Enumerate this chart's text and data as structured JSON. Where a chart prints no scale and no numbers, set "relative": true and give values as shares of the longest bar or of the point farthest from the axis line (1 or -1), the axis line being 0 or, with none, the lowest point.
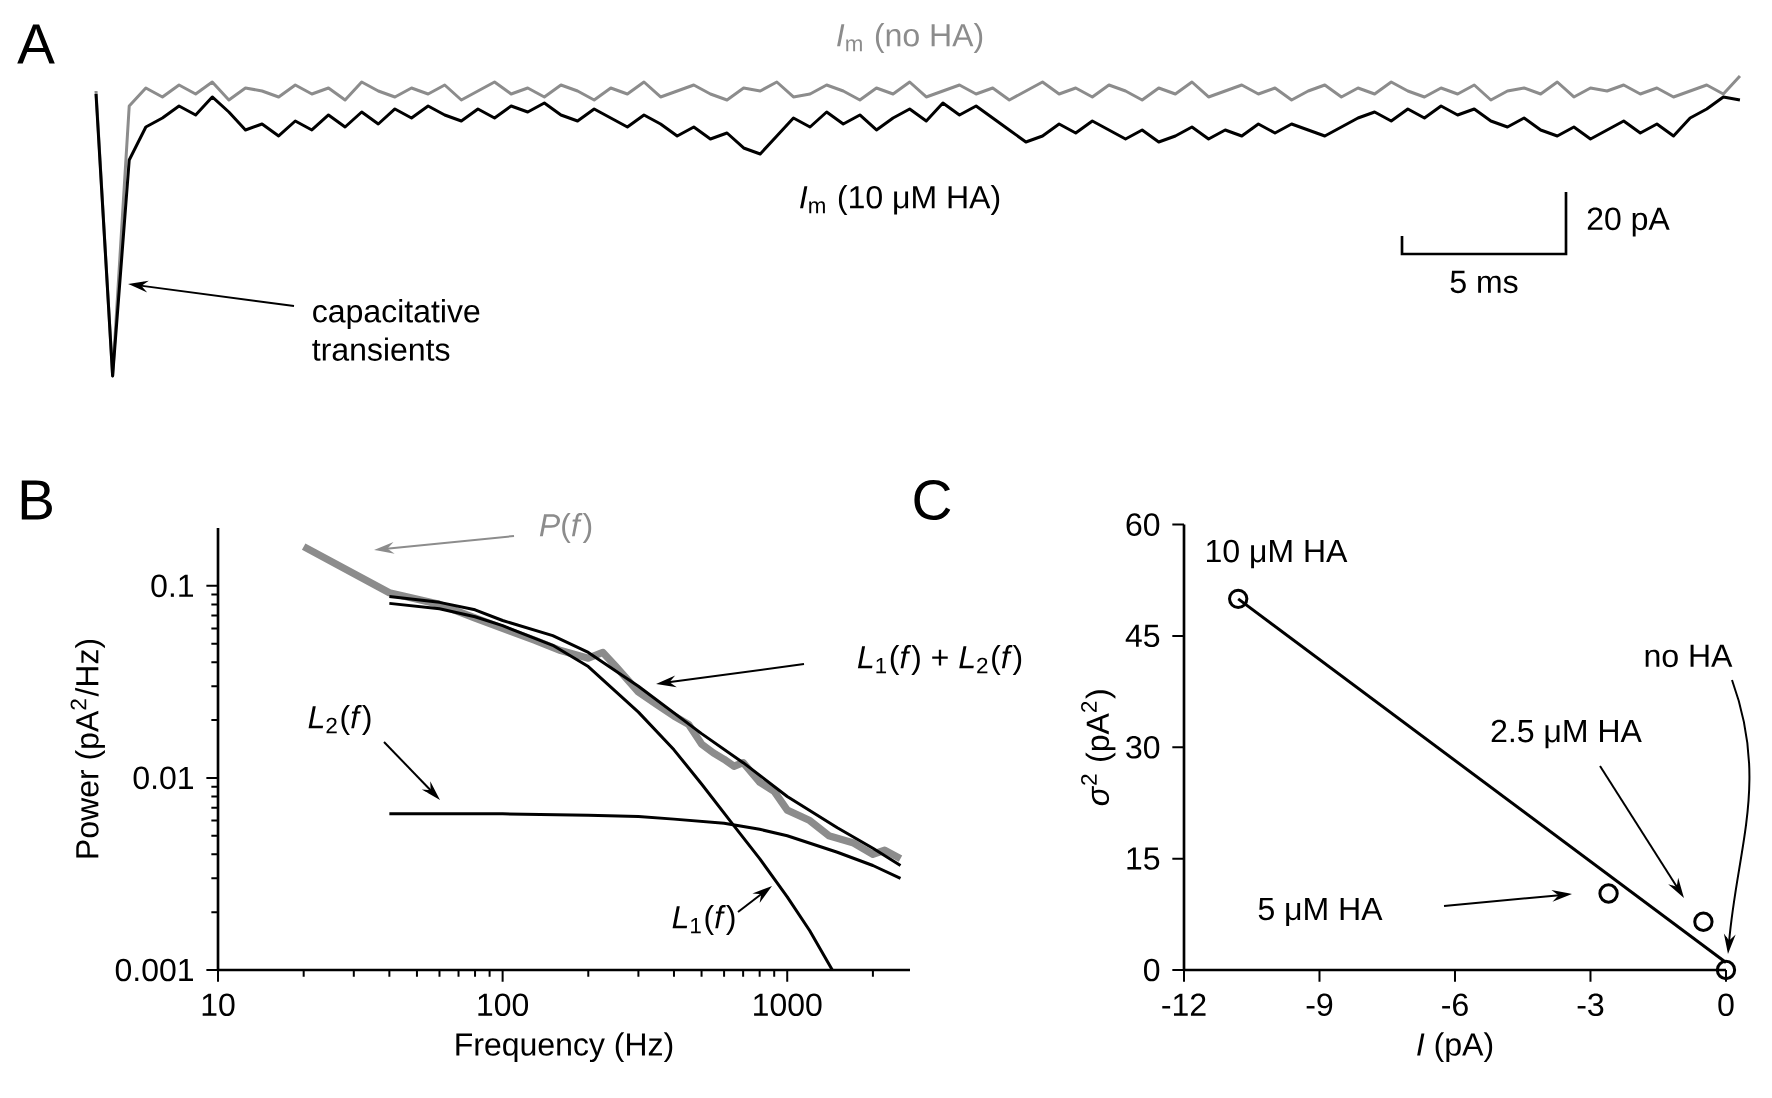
{
  "chart_data": [
    {
      "type": "line",
      "title": "A",
      "relative": true,
      "categories": [
        null,
        null,
        null,
        null,
        null,
        null,
        null,
        null,
        null,
        null,
        null,
        null,
        null,
        null,
        null,
        null,
        null,
        null,
        null,
        null,
        null,
        null,
        null,
        null,
        null,
        null,
        null,
        null,
        null,
        null,
        null,
        null,
        null,
        null,
        null,
        null,
        null,
        null,
        null,
        null,
        null,
        null,
        null,
        null,
        null,
        null,
        null,
        null,
        null,
        null,
        null,
        null,
        null,
        null,
        null,
        null,
        null,
        null,
        null,
        null,
        null,
        null,
        null,
        null,
        null,
        null,
        null,
        null,
        null,
        null,
        null,
        null,
        null,
        null,
        null,
        null,
        null,
        null,
        null,
        null,
        null,
        null,
        null,
        null,
        null,
        null,
        null,
        null,
        null,
        null,
        null,
        null,
        null,
        null,
        null,
        null,
        null,
        null,
        null,
        null
      ],
      "series": [
        {
          "name": "*I*$_{m}$ (no HA)",
          "color": "#8c8c8c",
          "values": [
            0.95,
            0.0,
            0.9,
            0.96,
            0.93,
            0.97,
            0.94,
            0.98,
            0.92,
            0.96,
            0.95,
            0.93,
            0.97,
            0.94,
            0.96,
            0.92,
            0.98,
            0.95,
            0.93,
            0.96,
            0.94,
            0.97,
            0.92,
            0.95,
            0.98,
            0.94,
            0.96,
            0.93,
            0.97,
            0.95,
            0.92,
            0.96,
            0.94,
            0.98,
            0.93,
            0.95,
            0.97,
            0.94,
            0.92,
            0.96,
            0.95,
            0.98,
            0.93,
            0.94,
            0.97,
            0.95,
            0.92,
            0.96,
            0.94,
            0.98,
            0.93,
            0.95,
            0.97,
            0.94,
            0.96,
            0.92,
            0.95,
            0.98,
            0.94,
            0.96,
            0.93,
            0.97,
            0.95,
            0.92,
            0.96,
            0.94,
            0.98,
            0.93,
            0.95,
            0.97,
            0.94,
            0.96,
            0.92,
            0.95,
            0.97,
            0.93,
            0.96,
            0.94,
            0.98,
            0.95,
            0.93,
            0.96,
            0.94,
            0.97,
            0.92,
            0.95,
            0.96,
            0.94,
            0.98,
            0.93,
            0.96,
            0.95,
            0.97,
            0.94,
            0.96,
            0.93,
            0.95,
            0.97,
            0.94,
            1.0
          ]
        },
        {
          "name": "*I*$_{m}$ (10 μM HA)",
          "color": "#000000",
          "values": [
            0.94,
            0.0,
            0.72,
            0.83,
            0.86,
            0.9,
            0.87,
            0.93,
            0.88,
            0.82,
            0.84,
            0.8,
            0.85,
            0.82,
            0.87,
            0.83,
            0.88,
            0.84,
            0.89,
            0.86,
            0.9,
            0.87,
            0.85,
            0.89,
            0.86,
            0.9,
            0.88,
            0.91,
            0.87,
            0.85,
            0.89,
            0.86,
            0.83,
            0.87,
            0.84,
            0.8,
            0.83,
            0.79,
            0.81,
            0.76,
            0.74,
            0.8,
            0.86,
            0.83,
            0.88,
            0.84,
            0.87,
            0.82,
            0.86,
            0.89,
            0.85,
            0.91,
            0.87,
            0.9,
            0.86,
            0.82,
            0.78,
            0.8,
            0.84,
            0.81,
            0.85,
            0.82,
            0.79,
            0.82,
            0.78,
            0.8,
            0.83,
            0.79,
            0.82,
            0.8,
            0.84,
            0.81,
            0.84,
            0.82,
            0.8,
            0.83,
            0.86,
            0.88,
            0.85,
            0.89,
            0.86,
            0.9,
            0.87,
            0.89,
            0.85,
            0.83,
            0.86,
            0.82,
            0.8,
            0.83,
            0.79,
            0.82,
            0.85,
            0.81,
            0.84,
            0.8,
            0.86,
            0.89,
            0.93,
            0.92
          ]
        }
      ],
      "annotations": [
        "capacitative transients",
        "20 pA",
        "5 ms"
      ]
    },
    {
      "type": "line",
      "title": "B",
      "xlabel": "Frequency (Hz)",
      "ylabel": "Power (pA$^{2}$/Hz)",
      "log": "xy",
      "xlim": [
        10,
        2700
      ],
      "ylim": [
        0.001,
        0.2
      ],
      "xticks": [
        10,
        100,
        1000
      ],
      "yticks": [
        0.001,
        0.01,
        0.1
      ],
      "series": [
        {
          "name": "*P*(*f*)",
          "color": "#8c8c8c",
          "x": [
            20,
            40,
            60,
            80,
            100,
            130,
            160,
            200,
            225,
            250,
            300,
            350,
            400,
            450,
            500,
            550,
            600,
            650,
            700,
            800,
            900,
            1000,
            1200,
            1400,
            1700,
            2000,
            2200,
            2500
          ],
          "values": [
            0.16,
            0.092,
            0.08,
            0.068,
            0.06,
            0.052,
            0.046,
            0.042,
            0.045,
            0.038,
            0.028,
            0.024,
            0.021,
            0.019,
            0.015,
            0.0135,
            0.0125,
            0.0115,
            0.012,
            0.0095,
            0.0085,
            0.0068,
            0.006,
            0.005,
            0.0046,
            0.004,
            0.0042,
            0.0038
          ]
        },
        {
          "name": "*L*$_{1}$(*f*) + *L*$_{2}$(*f*)",
          "color": "#000000",
          "x": [
            40,
            60,
            80,
            100,
            150,
            200,
            300,
            500,
            700,
            1000,
            1500,
            2000,
            2500
          ],
          "values": [
            0.088,
            0.082,
            0.075,
            0.066,
            0.055,
            0.045,
            0.03,
            0.017,
            0.012,
            0.008,
            0.0055,
            0.0043,
            0.0035
          ]
        },
        {
          "name": "*L*$_{2}$(*f*)",
          "color": "#000000",
          "x": [
            40,
            100,
            200,
            300,
            400,
            600,
            800,
            1000,
            1500,
            2000,
            2500
          ],
          "values": [
            0.0065,
            0.0065,
            0.0064,
            0.0063,
            0.0061,
            0.0058,
            0.0054,
            0.005,
            0.0041,
            0.0035,
            0.003
          ]
        },
        {
          "name": "*L*$_{1}$(*f*)",
          "color": "#000000",
          "x": [
            40,
            60,
            80,
            100,
            150,
            200,
            300,
            400,
            500,
            640,
            800,
            1000,
            1200,
            1440
          ],
          "values": [
            0.081,
            0.076,
            0.069,
            0.062,
            0.049,
            0.038,
            0.022,
            0.014,
            0.0093,
            0.0058,
            0.0038,
            0.0024,
            0.0016,
            0.001
          ]
        }
      ]
    },
    {
      "type": "scatter",
      "title": "C",
      "xlabel": "*I* (pA)",
      "ylabel": "*σ*$^{2}$ (pA$^{2}$)",
      "xlim": [
        -12,
        0
      ],
      "ylim": [
        0,
        60
      ],
      "xticks": [
        -12,
        -9,
        -6,
        -3,
        0
      ],
      "yticks": [
        0,
        15,
        30,
        45,
        60
      ],
      "marker": "circle",
      "series": [
        {
          "type": "scatter",
          "color": "#000000",
          "x": [
            -10.8,
            -2.6,
            -0.5,
            0
          ],
          "values": [
            50,
            10.3,
            6.5,
            0
          ]
        },
        {
          "type": "line",
          "marker": "none",
          "color": "#000000",
          "x": [
            -10.8,
            0
          ],
          "values": [
            50,
            1
          ]
        }
      ],
      "annotations": [
        "10 μM HA",
        "no HA",
        "2.5 μM HA",
        "5 μM HA"
      ]
    }
  ]
}
